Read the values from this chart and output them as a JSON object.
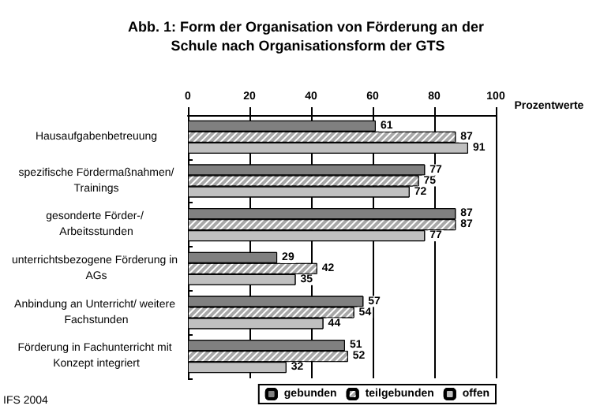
{
  "chart_data": {
    "type": "bar",
    "orientation": "horizontal",
    "title": "Abb. 1: Form der Organisation von Förderung an der Schule nach Organisationsform der GTS",
    "xlabel": "Prozentwerte",
    "categories": [
      "Hausaufgabenbetreuung",
      "spezifische Fördermaßnahmen/Trainings",
      "gesonderte Förder-/ Arbeitsstunden",
      "unterrichtsbezogene Förderung in AGs",
      "Anbindung an Unterricht/ weitere Fachstunden",
      "Förderung in Fachunterricht mit Konzept integriert"
    ],
    "series": [
      {
        "name": "gebunden",
        "color": "#808080",
        "values": [
          61,
          77,
          87,
          29,
          57,
          51
        ]
      },
      {
        "name": "teilgebunden",
        "color": "#a8a8a8",
        "values": [
          87,
          75,
          87,
          42,
          54,
          52
        ]
      },
      {
        "name": "offen",
        "color": "#c0c0c0",
        "values": [
          91,
          72,
          77,
          35,
          44,
          32
        ]
      }
    ],
    "xlim": [
      0,
      100
    ],
    "xticks": [
      0,
      20,
      40,
      60,
      80,
      100
    ],
    "grid": "x",
    "legend": "bottom right",
    "data_labels": true,
    "annotations": [
      "IFS 2004"
    ]
  }
}
